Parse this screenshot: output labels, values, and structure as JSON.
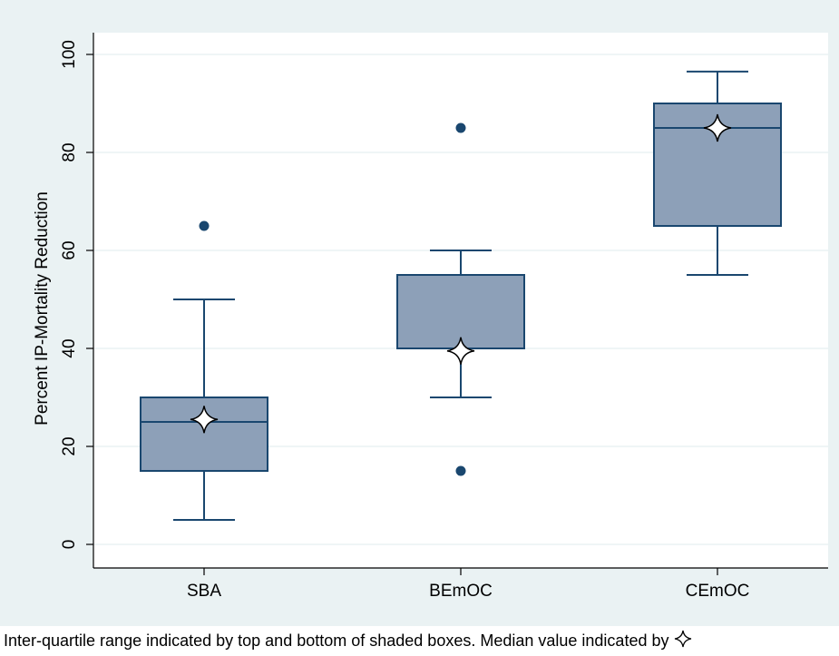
{
  "chart_data": {
    "type": "box",
    "ylabel": "Percent IP-Mortality Reduction",
    "ylim": [
      0,
      100
    ],
    "yticks": [
      0,
      20,
      40,
      60,
      80,
      100
    ],
    "categories": [
      "SBA",
      "BEmOC",
      "CEmOC"
    ],
    "boxes": [
      {
        "category": "SBA",
        "whisker_low": 5,
        "q1": 15,
        "median": 25,
        "q3": 30,
        "whisker_high": 50,
        "median_marker": 25.5,
        "outliers": [
          65
        ]
      },
      {
        "category": "BEmOC",
        "whisker_low": 30,
        "q1": 40,
        "median": 40,
        "q3": 55,
        "whisker_high": 60,
        "median_marker": 39.5,
        "outliers": [
          15,
          85
        ]
      },
      {
        "category": "CEmOC",
        "whisker_low": 55,
        "q1": 65,
        "median": 85,
        "q3": 90,
        "whisker_high": 96.5,
        "median_marker": 85,
        "outliers": []
      }
    ],
    "grid": true,
    "colors": {
      "box_fill": "#8da0b8",
      "box_stroke": "#1a476f",
      "outlier": "#1a476f",
      "plot_bg": "#ffffff",
      "outer_bg": "#eaf2f3",
      "grid": "#eaf2f3"
    }
  },
  "caption": "Inter-quartile range indicated by top and bottom of shaded boxes.  Median value indicated by"
}
